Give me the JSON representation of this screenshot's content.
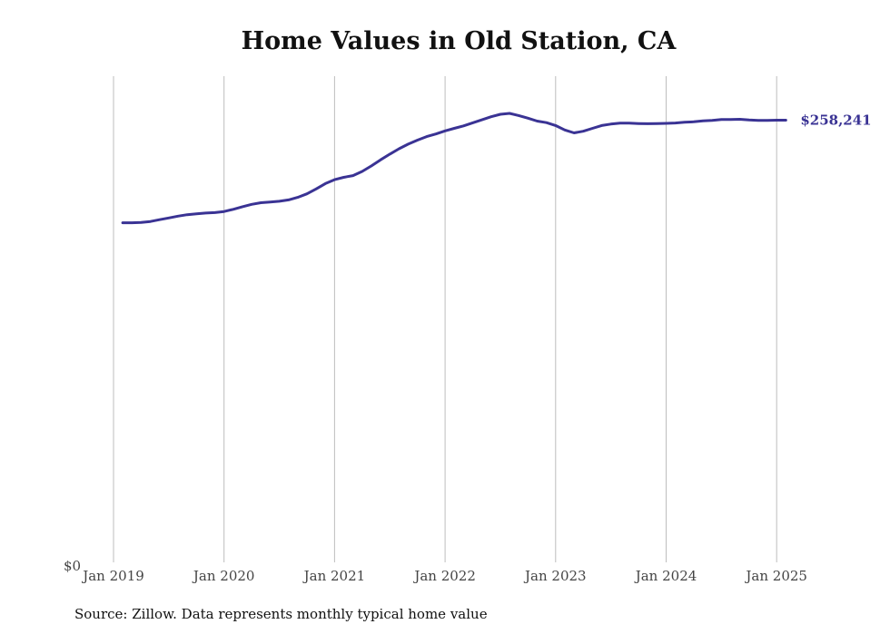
{
  "chart_data": {
    "type": "line",
    "title": "Home Values in Old Station, CA",
    "source": "Source: Zillow. Data represents monthly typical home value",
    "xlabel": "",
    "ylabel": "",
    "x_ticks": [
      "Jan 2019",
      "Jan 2020",
      "Jan 2021",
      "Jan 2022",
      "Jan 2023",
      "Jan 2024",
      "Jan 2025"
    ],
    "y_ticks": [
      "$0"
    ],
    "ylim": [
      0,
      272000
    ],
    "grid": "vertical",
    "line_color": "#3a3394",
    "end_label": "$258,241",
    "series": [
      {
        "values": [
          190000,
          190000,
          190200,
          190700,
          191700,
          192700,
          193700,
          194500,
          195000,
          195400,
          195700,
          196300,
          197500,
          199000,
          200300,
          201200,
          201600,
          202000,
          202800,
          204200,
          206200,
          208900,
          211900,
          214100,
          215400,
          216400,
          218700,
          221800,
          225200,
          228400,
          231400,
          234000,
          236200,
          238200,
          239700,
          241400,
          242800,
          244200,
          245900,
          247600,
          249300,
          250700,
          251200,
          250000,
          248500,
          246900,
          246000,
          244400,
          241900,
          240300,
          241200,
          242800,
          244400,
          245200,
          245700,
          245700,
          245500,
          245400,
          245500,
          245600,
          245800,
          246200,
          246500,
          247000,
          247300,
          247800,
          247800,
          247900,
          247500,
          247300,
          247300,
          247400,
          258241
        ]
      }
    ]
  }
}
